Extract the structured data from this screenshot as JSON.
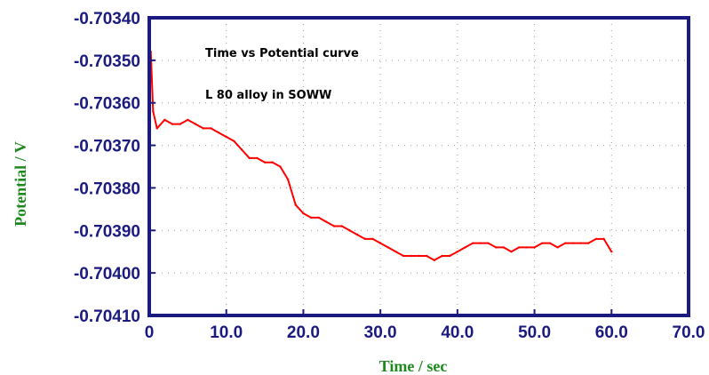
{
  "chart_data": {
    "type": "line",
    "title": "",
    "annotations": [
      "Time vs Potential curve",
      "L 80 alloy in SOWW"
    ],
    "xlabel": "Time / sec",
    "ylabel": "Potential / V",
    "xlim": [
      0,
      70
    ],
    "ylim": [
      -0.7041,
      -0.7034
    ],
    "x_ticks": [
      0,
      10,
      20,
      30,
      40,
      50,
      60,
      70
    ],
    "x_tick_labels": [
      "0",
      "10.0",
      "20.0",
      "30.0",
      "40.0",
      "50.0",
      "60.0",
      "70.0"
    ],
    "y_ticks": [
      -0.7034,
      -0.7035,
      -0.7036,
      -0.7037,
      -0.7038,
      -0.7039,
      -0.704,
      -0.7041
    ],
    "y_tick_labels": [
      "-0.70340",
      "-0.70350",
      "-0.70360",
      "-0.70370",
      "-0.70380",
      "-0.70390",
      "-0.70400",
      "-0.70410"
    ],
    "grid": true,
    "series": [
      {
        "color": "#ff0000",
        "x": [
          0,
          0.2,
          0.5,
          1,
          2,
          3,
          4,
          5,
          6,
          7,
          8,
          9,
          10,
          11,
          12,
          13,
          14,
          15,
          16,
          17,
          18,
          19,
          20,
          21,
          22,
          23,
          24,
          25,
          26,
          27,
          28,
          29,
          30,
          31,
          32,
          33,
          34,
          35,
          36,
          37,
          38,
          39,
          40,
          41,
          42,
          43,
          44,
          45,
          46,
          47,
          48,
          49,
          50,
          51,
          52,
          53,
          54,
          55,
          56,
          57,
          58,
          59,
          60
        ],
        "y": [
          -0.70362,
          -0.70348,
          -0.70362,
          -0.70366,
          -0.70364,
          -0.70365,
          -0.70365,
          -0.70364,
          -0.70365,
          -0.70366,
          -0.70366,
          -0.70367,
          -0.70368,
          -0.70369,
          -0.70371,
          -0.70373,
          -0.70373,
          -0.70374,
          -0.70374,
          -0.70375,
          -0.70378,
          -0.70384,
          -0.70386,
          -0.70387,
          -0.70387,
          -0.70388,
          -0.70389,
          -0.70389,
          -0.7039,
          -0.70391,
          -0.70392,
          -0.70392,
          -0.70393,
          -0.70394,
          -0.70395,
          -0.70396,
          -0.70396,
          -0.70396,
          -0.70396,
          -0.70397,
          -0.70396,
          -0.70396,
          -0.70395,
          -0.70394,
          -0.70393,
          -0.70393,
          -0.70393,
          -0.70394,
          -0.70394,
          -0.70395,
          -0.70394,
          -0.70394,
          -0.70394,
          -0.70393,
          -0.70393,
          -0.70394,
          -0.70393,
          -0.70393,
          -0.70393,
          -0.70393,
          -0.70392,
          -0.70392,
          -0.70395
        ]
      }
    ]
  },
  "colors": {
    "frame": "#1a1a80",
    "series": "#ff0000",
    "tick_text": "#1a1a80",
    "axis_label_text": "#1e8a1e",
    "grid": "#9a9a9a"
  }
}
